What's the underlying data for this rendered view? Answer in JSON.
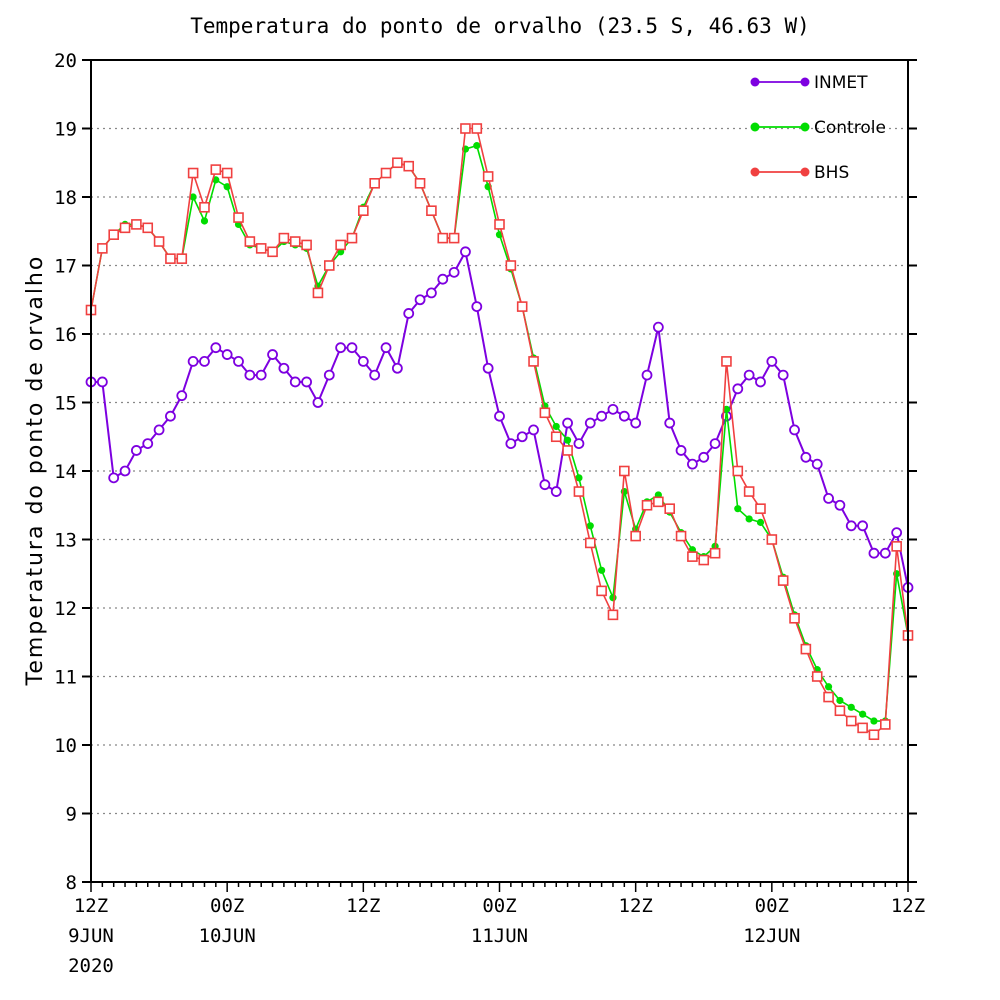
{
  "chart_data": {
    "type": "line",
    "title": "Temperatura do ponto de orvalho  (23.5 S, 46.63 W)",
    "xlabel": "",
    "ylabel": "Temperatura do ponto de orvalho",
    "ylim": [
      8,
      20
    ],
    "yticks": [
      "8",
      "9",
      "10",
      "11",
      "12",
      "13",
      "14",
      "15",
      "16",
      "17",
      "18",
      "19",
      "20"
    ],
    "x_step_hours": 1,
    "x_start": "2020-06-09 12Z",
    "xlim": [
      0,
      72
    ],
    "xticks": [
      {
        "x": 0,
        "line1": "12Z",
        "line2": "9JUN",
        "line3": "2020"
      },
      {
        "x": 12,
        "line1": "00Z",
        "line2": "10JUN",
        "line3": ""
      },
      {
        "x": 24,
        "line1": "12Z",
        "line2": "",
        "line3": ""
      },
      {
        "x": 36,
        "line1": "00Z",
        "line2": "11JUN",
        "line3": ""
      },
      {
        "x": 48,
        "line1": "12Z",
        "line2": "",
        "line3": ""
      },
      {
        "x": 60,
        "line1": "00Z",
        "line2": "12JUN",
        "line3": ""
      },
      {
        "x": 72,
        "line1": "12Z",
        "line2": "",
        "line3": ""
      }
    ],
    "grid": "horizontal dotted",
    "legend_position": "top-right",
    "series": [
      {
        "name": "INMET",
        "color": "#7d00e0",
        "marker": "circle",
        "values": [
          15.3,
          15.3,
          13.9,
          14.0,
          14.3,
          14.4,
          14.6,
          14.8,
          15.1,
          15.6,
          15.6,
          15.8,
          15.7,
          15.6,
          15.4,
          15.4,
          15.7,
          15.5,
          15.3,
          15.3,
          15.0,
          15.4,
          15.8,
          15.8,
          15.6,
          15.4,
          15.8,
          15.5,
          16.3,
          16.5,
          16.6,
          16.8,
          16.9,
          17.2,
          16.4,
          15.5,
          14.8,
          14.4,
          14.5,
          14.6,
          13.8,
          13.7,
          14.7,
          14.4,
          14.7,
          14.8,
          14.9,
          14.8,
          14.7,
          15.4,
          16.1,
          14.7,
          14.3,
          14.1,
          14.2,
          14.4,
          14.8,
          15.2,
          15.4,
          15.3,
          15.6,
          15.4,
          14.6,
          14.2,
          14.1,
          13.6,
          13.5,
          13.2,
          13.2,
          12.8,
          12.8,
          13.1,
          12.3
        ]
      },
      {
        "name": "Controle",
        "color": "#00dd00",
        "marker": "dot",
        "values": [
          16.35,
          17.25,
          17.45,
          17.6,
          17.6,
          17.55,
          17.35,
          17.1,
          17.1,
          18.0,
          17.65,
          18.25,
          18.15,
          17.6,
          17.3,
          17.25,
          17.2,
          17.35,
          17.3,
          17.25,
          16.7,
          17.0,
          17.2,
          17.4,
          17.85,
          18.2,
          18.35,
          18.5,
          18.45,
          18.2,
          17.8,
          17.4,
          17.4,
          18.7,
          18.75,
          18.15,
          17.45,
          16.95,
          16.4,
          15.65,
          14.95,
          14.65,
          14.45,
          13.9,
          13.2,
          12.55,
          12.15,
          13.7,
          13.15,
          13.55,
          13.65,
          13.4,
          13.1,
          12.85,
          12.75,
          12.9,
          14.9,
          13.45,
          13.3,
          13.25,
          13.0,
          12.45,
          11.9,
          11.45,
          11.1,
          10.85,
          10.65,
          10.55,
          10.45,
          10.35,
          10.35,
          12.5,
          11.6
        ]
      },
      {
        "name": "BHS",
        "color": "#f04040",
        "marker": "square",
        "values": [
          16.35,
          17.25,
          17.45,
          17.55,
          17.6,
          17.55,
          17.35,
          17.1,
          17.1,
          18.35,
          17.85,
          18.4,
          18.35,
          17.7,
          17.35,
          17.25,
          17.2,
          17.4,
          17.35,
          17.3,
          16.6,
          17.0,
          17.3,
          17.4,
          17.8,
          18.2,
          18.35,
          18.5,
          18.45,
          18.2,
          17.8,
          17.4,
          17.4,
          19.0,
          19.0,
          18.3,
          17.6,
          17.0,
          16.4,
          15.6,
          14.85,
          14.5,
          14.3,
          13.7,
          12.95,
          12.25,
          11.9,
          14.0,
          13.05,
          13.5,
          13.55,
          13.45,
          13.05,
          12.75,
          12.7,
          12.8,
          15.6,
          14.0,
          13.7,
          13.45,
          13.0,
          12.4,
          11.85,
          11.4,
          11.0,
          10.7,
          10.5,
          10.35,
          10.25,
          10.15,
          10.3,
          12.9,
          11.6
        ]
      }
    ]
  }
}
